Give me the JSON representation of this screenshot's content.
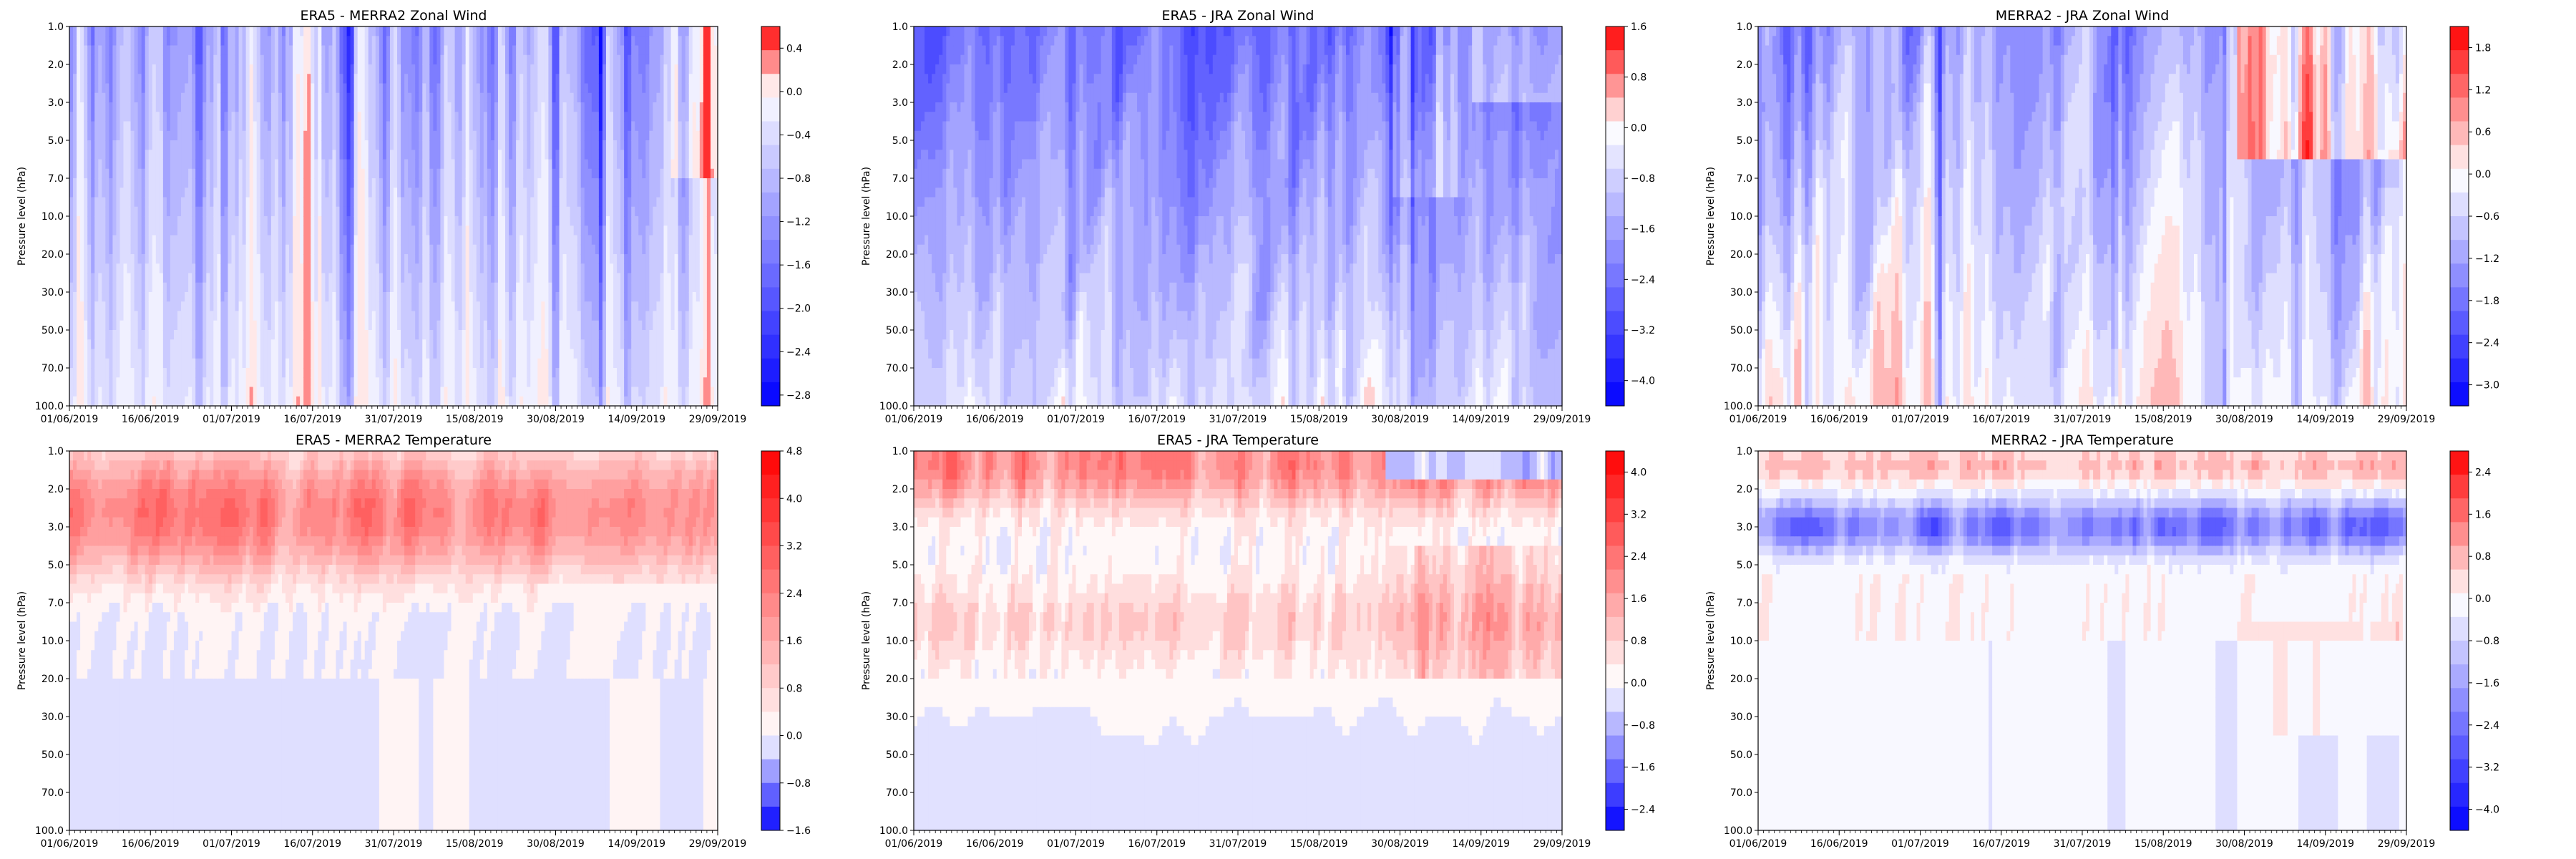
{
  "figure": {
    "ylabel": "Pressure level (hPa)",
    "y_ticks": [
      "1.0",
      "2.0",
      "3.0",
      "5.0",
      "7.0",
      "10.0",
      "20.0",
      "30.0",
      "50.0",
      "70.0",
      "100.0"
    ],
    "x_ticks": [
      "01/06/2019",
      "16/06/2019",
      "01/07/2019",
      "16/07/2019",
      "31/07/2019",
      "15/08/2019",
      "30/08/2019",
      "14/09/2019",
      "29/09/2019"
    ],
    "colors": {
      "blue": "#0000ff",
      "white": "#ffffff",
      "red": "#ff0000"
    }
  },
  "chart_data": [
    {
      "type": "heatmap",
      "title": "ERA5 - MERRA2 Zonal Wind",
      "ylabel": "Pressure level (hPa)",
      "colorbar": {
        "ticks": [
          "0.4",
          "0.0",
          "−0.4",
          "−0.8",
          "−1.2",
          "−1.6",
          "−2.0",
          "−2.4",
          "−2.8"
        ],
        "vmin": -2.9,
        "vmax": 0.6
      },
      "pattern": "wind1"
    },
    {
      "type": "heatmap",
      "title": "ERA5 - JRA Zonal Wind",
      "ylabel": "Pressure level (hPa)",
      "colorbar": {
        "ticks": [
          "1.6",
          "0.8",
          "0.0",
          "−0.8",
          "−1.6",
          "−2.4",
          "−3.2",
          "−4.0"
        ],
        "vmin": -4.4,
        "vmax": 1.6
      },
      "pattern": "wind2"
    },
    {
      "type": "heatmap",
      "title": "MERRA2 - JRA Zonal Wind",
      "ylabel": "Pressure level (hPa)",
      "colorbar": {
        "ticks": [
          "1.8",
          "1.2",
          "0.6",
          "0.0",
          "−0.6",
          "−1.2",
          "−1.8",
          "−2.4",
          "−3.0"
        ],
        "vmin": -3.3,
        "vmax": 2.1
      },
      "pattern": "wind3"
    },
    {
      "type": "heatmap",
      "title": "ERA5 - MERRA2 Temperature",
      "ylabel": "Pressure level (hPa)",
      "colorbar": {
        "ticks": [
          "4.8",
          "4.0",
          "3.2",
          "2.4",
          "1.6",
          "0.8",
          "0.0",
          "−0.8",
          "−1.6"
        ],
        "vmin": -1.6,
        "vmax": 4.8
      },
      "pattern": "temp1"
    },
    {
      "type": "heatmap",
      "title": "ERA5 - JRA Temperature",
      "ylabel": "Pressure level (hPa)",
      "colorbar": {
        "ticks": [
          "4.0",
          "3.2",
          "2.4",
          "1.6",
          "0.8",
          "0.0",
          "−0.8",
          "−1.6",
          "−2.4"
        ],
        "vmin": -2.8,
        "vmax": 4.4
      },
      "pattern": "temp2"
    },
    {
      "type": "heatmap",
      "title": "MERRA2 - JRA Temperature",
      "ylabel": "Pressure level (hPa)",
      "colorbar": {
        "ticks": [
          "2.4",
          "1.6",
          "0.8",
          "0.0",
          "−0.8",
          "−1.6",
          "−2.4",
          "−3.2",
          "−4.0"
        ],
        "vmin": -4.4,
        "vmax": 2.8
      },
      "pattern": "temp3"
    }
  ]
}
